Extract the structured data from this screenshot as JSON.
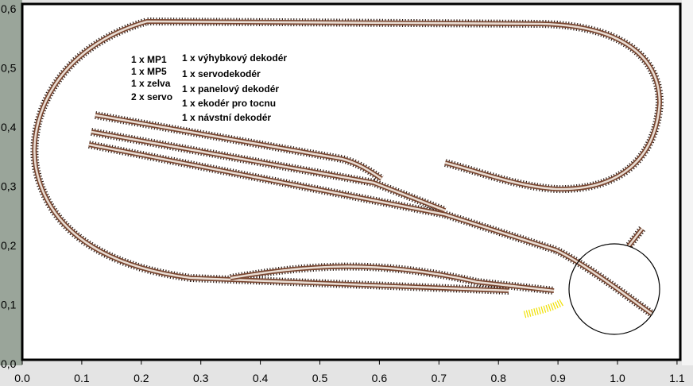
{
  "notes_left": [
    "1 x MP1",
    "1 x MP5",
    "1 x zelva",
    "2 x servo"
  ],
  "notes_right": [
    "1 x výhybkový dekodér",
    "1 x servodekodér",
    "1 x panelový dekodér",
    "1 x ekodér pro tocnu",
    "1 x návstní dekodér"
  ],
  "x_axis_labels": [
    "0.0",
    "0.1",
    "0.2",
    "0.3",
    "0.4",
    "0.5",
    "0.6",
    "0.7",
    "0.8",
    "0.9",
    "1.0",
    "1.1"
  ],
  "y_axis_labels": [
    "0,0",
    "0,1",
    "0,2",
    "0,3",
    "0,4",
    "0,5",
    "0,6"
  ]
}
